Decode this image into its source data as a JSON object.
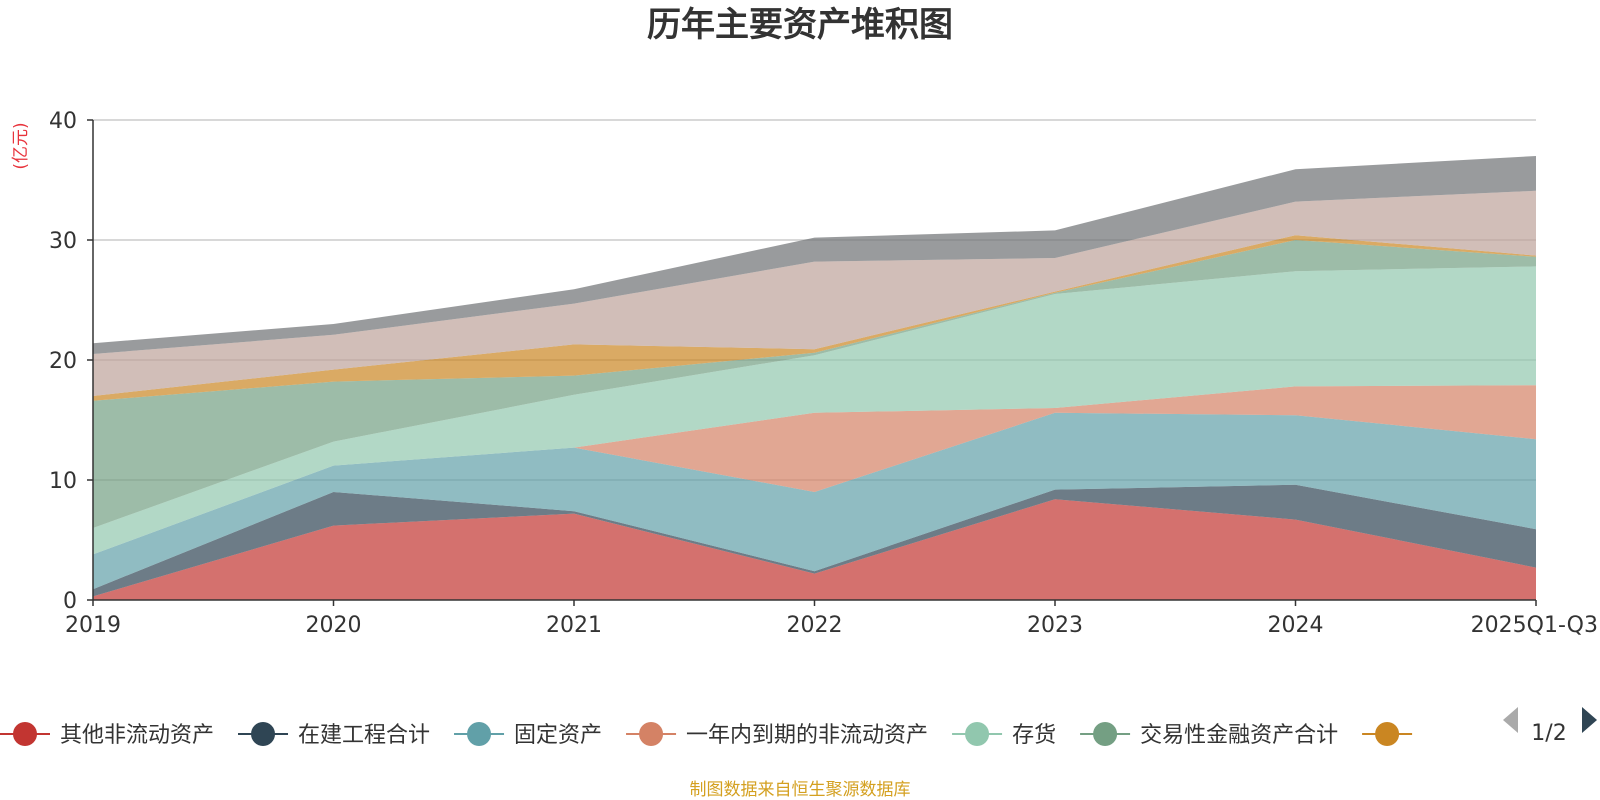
{
  "chart_data": {
    "type": "area",
    "stacked": true,
    "title": "历年主要资产堆积图",
    "ylabel": "(亿元)",
    "ylim": [
      0,
      40
    ],
    "yticks": [
      0,
      10,
      20,
      30,
      40
    ],
    "categories": [
      "2019",
      "2020",
      "2021",
      "2022",
      "2023",
      "2024",
      "2025Q1-Q3"
    ],
    "series": [
      {
        "name": "其他非流动资产",
        "color": "#c23531",
        "values": [
          0.3,
          6.2,
          7.2,
          2.2,
          8.4,
          6.7,
          2.7
        ]
      },
      {
        "name": "在建工程合计",
        "color": "#2f4554",
        "values": [
          0.6,
          2.8,
          0.2,
          0.2,
          0.8,
          2.9,
          3.2
        ]
      },
      {
        "name": "固定资产",
        "color": "#61a0a8",
        "values": [
          2.9,
          2.2,
          5.3,
          6.6,
          6.4,
          5.8,
          7.5
        ]
      },
      {
        "name": "一年内到期的非流动资产",
        "color": "#d48265",
        "values": [
          0,
          0,
          0,
          6.6,
          0.4,
          2.4,
          4.5
        ]
      },
      {
        "name": "存货",
        "color": "#91c7ae",
        "values": [
          2.2,
          2.0,
          4.4,
          4.8,
          9.5,
          9.6,
          9.9
        ]
      },
      {
        "name": "交易性金融资产合计",
        "color": "#749f83",
        "values": [
          10.6,
          5.0,
          1.6,
          0.2,
          0.1,
          2.6,
          0.8
        ]
      },
      {
        "name": "",
        "color": "#ca8622",
        "values": [
          0.4,
          1.0,
          2.6,
          0.3,
          0.1,
          0.4,
          0.1
        ]
      },
      {
        "name": "",
        "color": "#bda29a",
        "values": [
          3.5,
          2.9,
          3.4,
          7.3,
          2.8,
          2.8,
          5.4
        ]
      },
      {
        "name": "",
        "color": "#6e7074",
        "values": [
          0.9,
          0.9,
          1.2,
          2.0,
          2.3,
          2.7,
          2.9
        ]
      }
    ],
    "legend_visible": [
      {
        "name": "其他非流动资产",
        "color": "#c23531"
      },
      {
        "name": "在建工程合计",
        "color": "#2f4554"
      },
      {
        "name": "固定资产",
        "color": "#61a0a8"
      },
      {
        "name": "一年内到期的非流动资产",
        "color": "#d48265"
      },
      {
        "name": "存货",
        "color": "#91c7ae"
      },
      {
        "name": "交易性金融资产合计",
        "color": "#749f83"
      },
      {
        "name": "",
        "color": "#ca8622"
      }
    ],
    "legend_position": "bottom",
    "gridlines": true
  },
  "legend": {
    "page": "1/2"
  },
  "source": "制图数据来自恒生聚源数据库"
}
